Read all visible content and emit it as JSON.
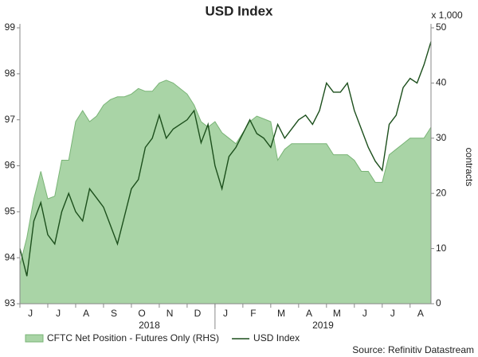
{
  "chart_data": {
    "type": "line-area",
    "title": "USD Index",
    "categories": [
      null,
      null,
      "J",
      null,
      null,
      null,
      "J",
      null,
      null,
      null,
      "A",
      null,
      null,
      null,
      "S",
      null,
      null,
      null,
      "O",
      null,
      null,
      null,
      "N",
      null,
      null,
      null,
      "D",
      null,
      null,
      null,
      "J",
      null,
      null,
      null,
      "F",
      null,
      null,
      null,
      "M",
      null,
      null,
      null,
      "A",
      null,
      null,
      null,
      "M",
      null,
      null,
      null,
      "J",
      null,
      null,
      null,
      "J",
      null,
      null,
      null,
      "A",
      null
    ],
    "years": [
      "2018",
      "2019"
    ],
    "series": [
      {
        "name": "CFTC Net Position - Futures Only (RHS)",
        "axis": "y2",
        "kind": "area",
        "color": "#a9d4a6",
        "values": [
          7,
          12,
          19,
          24,
          19,
          19.5,
          26,
          26,
          33,
          35,
          33,
          34,
          36,
          37,
          37.5,
          37.5,
          38,
          39,
          38.5,
          38.5,
          40,
          40.5,
          40,
          39,
          38,
          36,
          33,
          32,
          33,
          31,
          30,
          29,
          31,
          33,
          34,
          33.5,
          33,
          26,
          28,
          29,
          29,
          29,
          29,
          29,
          29,
          27,
          27,
          27,
          26,
          24,
          24,
          22,
          22,
          27,
          28,
          29,
          30,
          30,
          30,
          32
        ]
      },
      {
        "name": "USD Index",
        "kind": "line",
        "color": "#1c4f1c",
        "values": [
          94.2,
          93.6,
          94.8,
          95.2,
          94.5,
          94.3,
          95.0,
          95.4,
          95.0,
          94.8,
          95.5,
          95.3,
          95.1,
          94.7,
          94.3,
          94.9,
          95.5,
          95.7,
          96.4,
          96.6,
          97.1,
          96.6,
          96.8,
          96.9,
          97.0,
          97.2,
          96.5,
          96.9,
          96.0,
          95.5,
          96.2,
          96.4,
          96.7,
          97.0,
          96.7,
          96.6,
          96.4,
          96.9,
          96.6,
          96.8,
          97.0,
          97.1,
          96.9,
          97.2,
          97.8,
          97.6,
          97.6,
          97.8,
          97.2,
          96.8,
          96.4,
          96.1,
          95.9,
          96.9,
          97.1,
          97.7,
          97.9,
          97.8,
          98.2,
          98.7
        ]
      }
    ],
    "ylim": [
      93,
      99
    ],
    "yticks": [
      93,
      94,
      95,
      96,
      97,
      98,
      99
    ],
    "y2lim": [
      0,
      50
    ],
    "y2ticks": [
      0,
      10,
      20,
      30,
      40,
      50
    ],
    "y2_unit": "x 1,000",
    "y2_label": "contracts",
    "source": "Source: Refinitiv Datastream",
    "legend": "bottom-left"
  }
}
